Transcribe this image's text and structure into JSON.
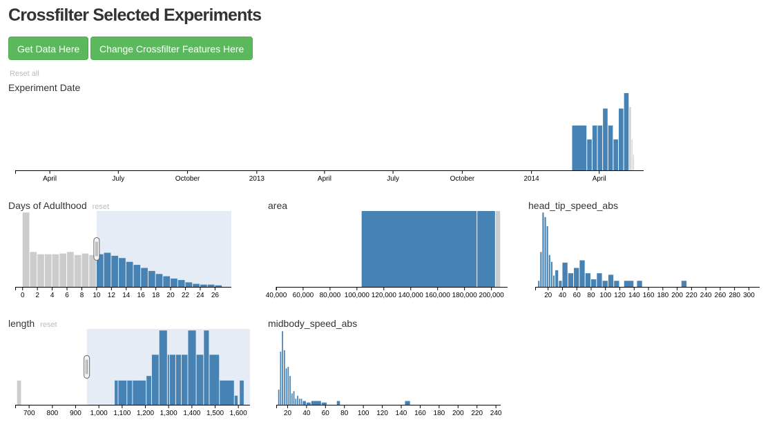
{
  "page": {
    "title": "Crossfilter Selected Experiments"
  },
  "buttons": {
    "get_data": "Get Data Here",
    "change_features": "Change Crossfilter Features Here"
  },
  "reset_all": "Reset all",
  "reset_label": "reset",
  "colors": {
    "selected": "#4682b4",
    "unselected": "#cccccc",
    "brush": "#e6ecf5",
    "button": "#5cb85c"
  },
  "chart_data": [
    {
      "id": "date",
      "type": "bar",
      "title": "Experiment Date",
      "xlim": [
        "2012-02-15",
        "2014-05-30"
      ],
      "tick_labels": [
        {
          "x": "2012-04-01",
          "label": "April"
        },
        {
          "x": "2012-07-01",
          "label": "July"
        },
        {
          "x": "2012-10-01",
          "label": "October"
        },
        {
          "x": "2013-01-01",
          "label": "2013"
        },
        {
          "x": "2013-04-01",
          "label": "April"
        },
        {
          "x": "2013-07-01",
          "label": "July"
        },
        {
          "x": "2013-10-01",
          "label": "October"
        },
        {
          "x": "2014-01-01",
          "label": "2014"
        },
        {
          "x": "2014-04-01",
          "label": "April"
        }
      ],
      "ylim": [
        0,
        100
      ],
      "bars": [
        {
          "x0": "2014-02-24",
          "x1": "2014-03-16",
          "y": 58,
          "s": true
        },
        {
          "x0": "2014-03-16",
          "x1": "2014-03-23",
          "y": 40,
          "s": true
        },
        {
          "x0": "2014-03-23",
          "x1": "2014-03-30",
          "y": 58,
          "s": true
        },
        {
          "x0": "2014-03-30",
          "x1": "2014-04-06",
          "y": 58,
          "s": true
        },
        {
          "x0": "2014-04-06",
          "x1": "2014-04-13",
          "y": 80,
          "s": true
        },
        {
          "x0": "2014-04-13",
          "x1": "2014-04-20",
          "y": 58,
          "s": true
        },
        {
          "x0": "2014-04-20",
          "x1": "2014-04-27",
          "y": 40,
          "s": true
        },
        {
          "x0": "2014-04-27",
          "x1": "2014-05-04",
          "y": 80,
          "s": true
        },
        {
          "x0": "2014-05-04",
          "x1": "2014-05-11",
          "y": 100,
          "s": true
        },
        {
          "x0": "2014-05-11",
          "x1": "2014-05-14",
          "y": 82,
          "s": false
        },
        {
          "x0": "2014-05-14",
          "x1": "2014-05-16",
          "y": 40,
          "s": false
        },
        {
          "x0": "2014-05-16",
          "x1": "2014-05-18",
          "y": 20,
          "s": false
        }
      ]
    },
    {
      "id": "days",
      "type": "bar",
      "title": "Days of Adulthood",
      "xlim": [
        -1,
        28.2
      ],
      "ticks": [
        0,
        2,
        4,
        6,
        8,
        10,
        12,
        14,
        16,
        18,
        20,
        22,
        24,
        26
      ],
      "ylim": [
        0,
        100
      ],
      "brush": [
        10,
        28.2
      ],
      "bars": [
        {
          "x0": 0,
          "x1": 1,
          "y": 98,
          "s": false
        },
        {
          "x0": 1,
          "x1": 2,
          "y": 46,
          "s": false
        },
        {
          "x0": 2,
          "x1": 3,
          "y": 43,
          "s": false
        },
        {
          "x0": 3,
          "x1": 4,
          "y": 43,
          "s": false
        },
        {
          "x0": 4,
          "x1": 5,
          "y": 43,
          "s": false
        },
        {
          "x0": 5,
          "x1": 6,
          "y": 44,
          "s": false
        },
        {
          "x0": 6,
          "x1": 7,
          "y": 46,
          "s": false
        },
        {
          "x0": 7,
          "x1": 8,
          "y": 42,
          "s": false
        },
        {
          "x0": 8,
          "x1": 9,
          "y": 44,
          "s": false
        },
        {
          "x0": 9,
          "x1": 10,
          "y": 42,
          "s": false
        },
        {
          "x0": 10,
          "x1": 11,
          "y": 43,
          "s": true
        },
        {
          "x0": 11,
          "x1": 12,
          "y": 45,
          "s": true
        },
        {
          "x0": 12,
          "x1": 13,
          "y": 41,
          "s": true
        },
        {
          "x0": 13,
          "x1": 14,
          "y": 38,
          "s": true
        },
        {
          "x0": 14,
          "x1": 15,
          "y": 33,
          "s": true
        },
        {
          "x0": 15,
          "x1": 16,
          "y": 29,
          "s": true
        },
        {
          "x0": 16,
          "x1": 17,
          "y": 25,
          "s": true
        },
        {
          "x0": 17,
          "x1": 18,
          "y": 21,
          "s": true
        },
        {
          "x0": 18,
          "x1": 19,
          "y": 17,
          "s": true
        },
        {
          "x0": 19,
          "x1": 20,
          "y": 14,
          "s": true
        },
        {
          "x0": 20,
          "x1": 21,
          "y": 11,
          "s": true
        },
        {
          "x0": 21,
          "x1": 22,
          "y": 9,
          "s": true
        },
        {
          "x0": 22,
          "x1": 23,
          "y": 6,
          "s": true
        },
        {
          "x0": 23,
          "x1": 24,
          "y": 4,
          "s": true
        },
        {
          "x0": 24,
          "x1": 25,
          "y": 3,
          "s": true
        },
        {
          "x0": 25,
          "x1": 26,
          "y": 3,
          "s": true
        },
        {
          "x0": 26,
          "x1": 27,
          "y": 2,
          "s": true
        }
      ]
    },
    {
      "id": "area",
      "type": "bar",
      "title": "area",
      "xlim": [
        40000,
        212000
      ],
      "ticks": [
        40000,
        60000,
        80000,
        100000,
        120000,
        140000,
        160000,
        180000,
        200000
      ],
      "tick_labels": [
        "40,000",
        "60,000",
        "80,000",
        "100,000",
        "120,000",
        "140,000",
        "160,000",
        "180,000",
        "200,000"
      ],
      "ylim": [
        0,
        100
      ],
      "bars": [
        {
          "x0": 103500,
          "x1": 189500,
          "y": 100,
          "s": true
        },
        {
          "x0": 189500,
          "x1": 203200,
          "y": 100,
          "s": true
        },
        {
          "x0": 203200,
          "x1": 207000,
          "y": 100,
          "s": false
        }
      ]
    },
    {
      "id": "head",
      "type": "bar",
      "title": "head_tip_speed_abs",
      "xlim": [
        2,
        315
      ],
      "ticks": [
        20,
        40,
        60,
        80,
        100,
        120,
        140,
        160,
        180,
        200,
        220,
        240,
        260,
        280,
        300
      ],
      "ylim": [
        0,
        100
      ],
      "bars": [
        {
          "x0": 6,
          "x1": 9,
          "y": 8,
          "s": true
        },
        {
          "x0": 9,
          "x1": 12,
          "y": 46,
          "s": true
        },
        {
          "x0": 12,
          "x1": 15,
          "y": 98,
          "s": true
        },
        {
          "x0": 15,
          "x1": 18,
          "y": 92,
          "s": true
        },
        {
          "x0": 18,
          "x1": 21,
          "y": 80,
          "s": true
        },
        {
          "x0": 21,
          "x1": 24,
          "y": 42,
          "s": true
        },
        {
          "x0": 24,
          "x1": 27,
          "y": 33,
          "s": true
        },
        {
          "x0": 27,
          "x1": 30,
          "y": 15,
          "s": true
        },
        {
          "x0": 30,
          "x1": 35,
          "y": 22,
          "s": true
        },
        {
          "x0": 35,
          "x1": 40,
          "y": 8,
          "s": true
        },
        {
          "x0": 40,
          "x1": 48,
          "y": 32,
          "s": true
        },
        {
          "x0": 48,
          "x1": 56,
          "y": 18,
          "s": true
        },
        {
          "x0": 56,
          "x1": 64,
          "y": 25,
          "s": true
        },
        {
          "x0": 64,
          "x1": 72,
          "y": 35,
          "s": true
        },
        {
          "x0": 72,
          "x1": 80,
          "y": 18,
          "s": true
        },
        {
          "x0": 80,
          "x1": 88,
          "y": 10,
          "s": true
        },
        {
          "x0": 88,
          "x1": 96,
          "y": 18,
          "s": true
        },
        {
          "x0": 96,
          "x1": 104,
          "y": 8,
          "s": true
        },
        {
          "x0": 104,
          "x1": 112,
          "y": 16,
          "s": true
        },
        {
          "x0": 112,
          "x1": 120,
          "y": 8,
          "s": true
        },
        {
          "x0": 126,
          "x1": 140,
          "y": 8,
          "s": true
        },
        {
          "x0": 144,
          "x1": 152,
          "y": 8,
          "s": true
        },
        {
          "x0": 206,
          "x1": 214,
          "y": 8,
          "s": true
        }
      ]
    },
    {
      "id": "length",
      "type": "bar",
      "title": "length",
      "xlim": [
        640,
        1650
      ],
      "ticks": [
        700,
        800,
        900,
        1000,
        1100,
        1200,
        1300,
        1400,
        1500,
        1600
      ],
      "tick_labels": [
        "700",
        "800",
        "900",
        "1,000",
        "1,100",
        "1,200",
        "1,300",
        "1,400",
        "1,500",
        "1,600"
      ],
      "ylim": [
        0,
        100
      ],
      "brush": [
        948,
        1650
      ],
      "bars": [
        {
          "x0": 648,
          "x1": 668,
          "y": 32,
          "s": false
        },
        {
          "x0": 1068,
          "x1": 1084,
          "y": 32,
          "s": true
        },
        {
          "x0": 1084,
          "x1": 1122,
          "y": 32,
          "s": true
        },
        {
          "x0": 1122,
          "x1": 1146,
          "y": 32,
          "s": true
        },
        {
          "x0": 1146,
          "x1": 1205,
          "y": 32,
          "s": true
        },
        {
          "x0": 1205,
          "x1": 1228,
          "y": 38,
          "s": true
        },
        {
          "x0": 1228,
          "x1": 1260,
          "y": 66,
          "s": true
        },
        {
          "x0": 1260,
          "x1": 1296,
          "y": 98,
          "s": true
        },
        {
          "x0": 1296,
          "x1": 1305,
          "y": 66,
          "s": true
        },
        {
          "x0": 1305,
          "x1": 1332,
          "y": 66,
          "s": true
        },
        {
          "x0": 1332,
          "x1": 1356,
          "y": 66,
          "s": true
        },
        {
          "x0": 1356,
          "x1": 1384,
          "y": 66,
          "s": true
        },
        {
          "x0": 1384,
          "x1": 1420,
          "y": 98,
          "s": true
        },
        {
          "x0": 1420,
          "x1": 1452,
          "y": 66,
          "s": true
        },
        {
          "x0": 1452,
          "x1": 1476,
          "y": 98,
          "s": true
        },
        {
          "x0": 1476,
          "x1": 1520,
          "y": 66,
          "s": true
        },
        {
          "x0": 1520,
          "x1": 1584,
          "y": 32,
          "s": true
        },
        {
          "x0": 1584,
          "x1": 1600,
          "y": 12,
          "s": true
        },
        {
          "x0": 1606,
          "x1": 1626,
          "y": 32,
          "s": true
        }
      ]
    },
    {
      "id": "midbody",
      "type": "bar",
      "title": "midbody_speed_abs",
      "xlim": [
        8,
        245
      ],
      "ticks": [
        20,
        40,
        60,
        80,
        100,
        120,
        140,
        160,
        180,
        200,
        220,
        240
      ],
      "ylim": [
        0,
        100
      ],
      "bars": [
        {
          "x0": 10,
          "x1": 12,
          "y": 20,
          "s": true
        },
        {
          "x0": 12,
          "x1": 14,
          "y": 70,
          "s": true
        },
        {
          "x0": 14,
          "x1": 16,
          "y": 97,
          "s": true
        },
        {
          "x0": 16,
          "x1": 18,
          "y": 72,
          "s": true
        },
        {
          "x0": 18,
          "x1": 20,
          "y": 48,
          "s": true
        },
        {
          "x0": 20,
          "x1": 22,
          "y": 50,
          "s": true
        },
        {
          "x0": 22,
          "x1": 24,
          "y": 38,
          "s": true
        },
        {
          "x0": 24,
          "x1": 26,
          "y": 15,
          "s": true
        },
        {
          "x0": 26,
          "x1": 28,
          "y": 18,
          "s": true
        },
        {
          "x0": 28,
          "x1": 30,
          "y": 8,
          "s": true
        },
        {
          "x0": 30,
          "x1": 32,
          "y": 12,
          "s": true
        },
        {
          "x0": 32,
          "x1": 34,
          "y": 8,
          "s": true
        },
        {
          "x0": 34,
          "x1": 36,
          "y": 8,
          "s": true
        },
        {
          "x0": 36,
          "x1": 40,
          "y": 5,
          "s": true
        },
        {
          "x0": 40,
          "x1": 45,
          "y": 3,
          "s": true
        },
        {
          "x0": 45,
          "x1": 56,
          "y": 5,
          "s": true
        },
        {
          "x0": 56,
          "x1": 62,
          "y": 3,
          "s": true
        },
        {
          "x0": 72,
          "x1": 76,
          "y": 5,
          "s": true
        },
        {
          "x0": 144,
          "x1": 150,
          "y": 5,
          "s": true
        }
      ]
    }
  ]
}
